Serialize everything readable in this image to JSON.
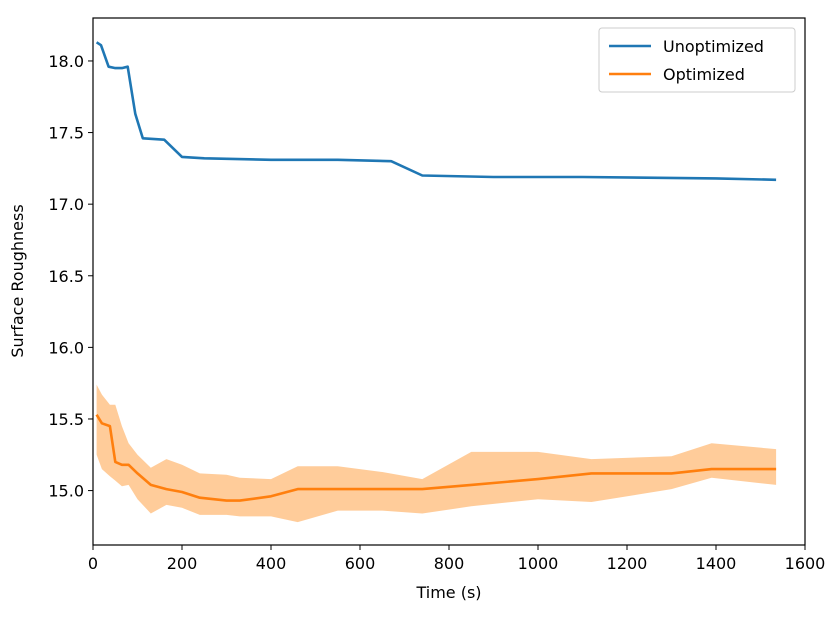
{
  "chart_data": {
    "type": "line",
    "title": "",
    "xlabel": "Time (s)",
    "ylabel": "Surface Roughness",
    "xlim": [
      0,
      1600
    ],
    "ylim": [
      14.62,
      18.3
    ],
    "xticks": [
      0,
      200,
      400,
      600,
      800,
      1000,
      1200,
      1400,
      1600
    ],
    "yticks": [
      15.0,
      15.5,
      16.0,
      16.5,
      17.0,
      17.5,
      18.0
    ],
    "grid": false,
    "legend": "top-right",
    "series": [
      {
        "name": "Unoptimized",
        "color": "#1f77b4",
        "x": [
          8,
          18,
          35,
          50,
          65,
          78,
          95,
          112,
          160,
          200,
          250,
          400,
          550,
          670,
          740,
          900,
          1100,
          1400,
          1535
        ],
        "y": [
          18.13,
          18.11,
          17.96,
          17.95,
          17.95,
          17.96,
          17.63,
          17.46,
          17.45,
          17.33,
          17.32,
          17.31,
          17.31,
          17.3,
          17.2,
          17.19,
          17.19,
          17.18,
          17.17
        ]
      },
      {
        "name": "Optimized",
        "color": "#ff7f0e",
        "x": [
          8,
          20,
          38,
          50,
          65,
          80,
          100,
          130,
          165,
          200,
          240,
          300,
          330,
          400,
          460,
          550,
          650,
          740,
          850,
          1000,
          1120,
          1300,
          1390,
          1535
        ],
        "y": [
          15.53,
          15.47,
          15.45,
          15.2,
          15.18,
          15.18,
          15.12,
          15.04,
          15.01,
          14.99,
          14.95,
          14.93,
          14.93,
          14.96,
          15.01,
          15.01,
          15.01,
          15.01,
          15.04,
          15.08,
          15.12,
          15.12,
          15.15,
          15.15
        ],
        "band_lower": [
          15.25,
          15.15,
          15.1,
          15.07,
          15.03,
          15.04,
          14.94,
          14.84,
          14.9,
          14.88,
          14.83,
          14.83,
          14.82,
          14.82,
          14.78,
          14.86,
          14.86,
          14.84,
          14.89,
          14.94,
          14.92,
          15.01,
          15.09,
          15.04
        ],
        "band_upper": [
          15.74,
          15.67,
          15.6,
          15.6,
          15.45,
          15.33,
          15.25,
          15.16,
          15.22,
          15.18,
          15.12,
          15.11,
          15.09,
          15.08,
          15.17,
          15.17,
          15.13,
          15.08,
          15.27,
          15.27,
          15.22,
          15.24,
          15.33,
          15.29
        ],
        "band_color": "#ffbb78"
      }
    ]
  }
}
